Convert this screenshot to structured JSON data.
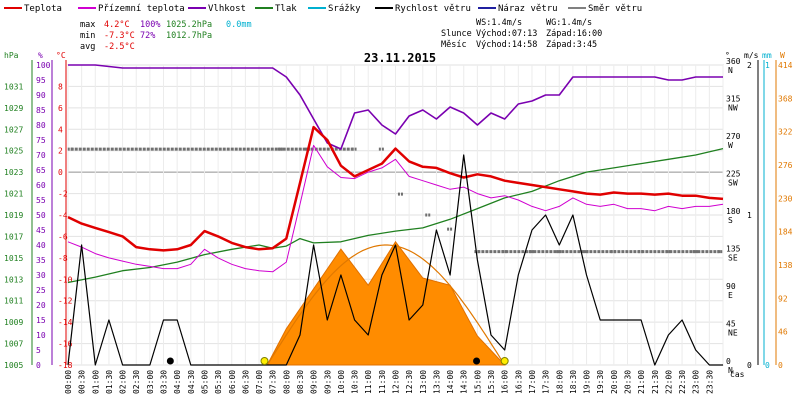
{
  "chart_data": {
    "type": "line",
    "title": "23.11.2015",
    "legend": [
      {
        "name": "Teplota",
        "color": "#e00000"
      },
      {
        "name": "Přízemní teplota",
        "color": "#d000d0"
      },
      {
        "name": "Vlhkost",
        "color": "#7a00b0"
      },
      {
        "name": "Tlak",
        "color": "#208020"
      },
      {
        "name": "Srážky",
        "color": "#00b0d0"
      },
      {
        "name": "Rychlost větru",
        "color": "#000000"
      },
      {
        "name": "Náraz větru",
        "color": "#2020a0"
      },
      {
        "name": "Směr větru",
        "color": "#808080"
      }
    ],
    "stats": {
      "max_label": "max",
      "max_temp": "4.2°C",
      "max_hum": "100%",
      "max_press": "1025.2hPa",
      "max_rain": "0.0mm",
      "min_label": "min",
      "min_temp": "-7.3°C",
      "min_hum": "72%",
      "min_press": "1012.7hPa",
      "avg_label": "avg",
      "avg_temp": "-2.5°C",
      "ws": "WS:1.4m/s",
      "wg": "WG:1.4m/s",
      "sun_label": "Slunce",
      "sunrise": "Východ:07:13",
      "sunset": "Západ:16:00",
      "moon_label": "Měsíc",
      "moonrise": "Východ:14:58",
      "moonset": "Západ:3:45"
    },
    "axes": {
      "hpa_title": "hPa",
      "pct_title": "%",
      "c_title": "°C",
      "hpa_ticks": [
        "1005",
        "1007",
        "1009",
        "1011",
        "1013",
        "1015",
        "1017",
        "1019",
        "1021",
        "1023",
        "1025",
        "1027",
        "1029",
        "1031"
      ],
      "pct_ticks": [
        "0",
        "5",
        "10",
        "15",
        "20",
        "25",
        "30",
        "35",
        "40",
        "45",
        "50",
        "55",
        "60",
        "65",
        "70",
        "75",
        "80",
        "85",
        "90",
        "95",
        "100"
      ],
      "c_ticks": [
        "-18",
        "-16",
        "-14",
        "-12",
        "-10",
        "-8",
        "-6",
        "-4",
        "-2",
        "0",
        "2",
        "4",
        "6",
        "8"
      ],
      "deg_title": "°",
      "dir_ticks": [
        "0",
        "45",
        "90",
        "135",
        "180",
        "225",
        "270",
        "315",
        "360"
      ],
      "dir_labels": [
        "N",
        "NE",
        "E",
        "SE",
        "S",
        "SW",
        "W",
        "NW",
        "N"
      ],
      "ms_title": "m/s",
      "ms_ticks": [
        "0",
        "1",
        "2"
      ],
      "mm_title": "mm",
      "mm_ticks": [
        "0",
        "1"
      ],
      "wm2_title": "W",
      "sol_ticks": [
        "0",
        "46",
        "92",
        "138",
        "184",
        "230",
        "276",
        "322",
        "368",
        "414"
      ],
      "x_title": "čas",
      "x_ticks": [
        "00:00",
        "00:30",
        "01:00",
        "01:30",
        "02:00",
        "02:30",
        "03:00",
        "03:30",
        "04:00",
        "04:30",
        "05:00",
        "05:30",
        "06:00",
        "06:30",
        "07:00",
        "07:30",
        "08:00",
        "08:30",
        "09:00",
        "09:30",
        "10:00",
        "10:30",
        "11:00",
        "11:30",
        "12:00",
        "12:30",
        "13:00",
        "13:30",
        "14:00",
        "14:30",
        "15:00",
        "15:30",
        "16:00",
        "16:30",
        "17:00",
        "17:30",
        "18:00",
        "18:30",
        "19:00",
        "19:30",
        "20:00",
        "20:30",
        "21:00",
        "21:30",
        "22:00",
        "22:30",
        "23:00",
        "23:30"
      ],
      "x_range_h": [
        0,
        24
      ],
      "temp_range": [
        -18,
        10
      ],
      "hum_range": [
        0,
        100
      ]
    },
    "series": [
      {
        "name": "Teplota",
        "unit": "°C",
        "x_h": [
          0,
          0.5,
          1,
          1.5,
          2,
          2.5,
          3,
          3.5,
          4,
          4.5,
          5,
          5.5,
          6,
          6.5,
          7,
          7.5,
          8,
          8.5,
          9,
          9.5,
          10,
          10.5,
          11,
          11.5,
          12,
          12.5,
          13,
          13.5,
          14,
          14.5,
          15,
          15.5,
          16,
          16.5,
          17,
          17.5,
          18,
          18.5,
          19,
          19.5,
          20,
          20.5,
          21,
          21.5,
          22,
          22.5,
          23,
          23.5,
          24
        ],
        "values": [
          -4.2,
          -4.8,
          -5.2,
          -5.6,
          -6.0,
          -7.0,
          -7.2,
          -7.3,
          -7.2,
          -6.8,
          -5.5,
          -6.0,
          -6.6,
          -7.0,
          -7.2,
          -7.1,
          -6.2,
          -1.0,
          4.2,
          3.0,
          0.6,
          -0.4,
          0.2,
          0.8,
          2.2,
          1.0,
          0.5,
          0.4,
          -0.1,
          -0.5,
          -0.2,
          -0.4,
          -0.8,
          -1.0,
          -1.2,
          -1.4,
          -1.6,
          -1.8,
          -2.0,
          -2.1,
          -1.9,
          -2.0,
          -2.0,
          -2.1,
          -2.0,
          -2.2,
          -2.2,
          -2.4,
          -2.5
        ]
      },
      {
        "name": "Přízemní teplota",
        "unit": "°C",
        "x_h": [
          0,
          0.5,
          1,
          1.5,
          2,
          2.5,
          3,
          3.5,
          4,
          4.5,
          5,
          5.5,
          6,
          6.5,
          7,
          7.5,
          8,
          8.5,
          9,
          9.5,
          10,
          10.5,
          11,
          11.5,
          12,
          12.5,
          13,
          13.5,
          14,
          14.5,
          15,
          15.5,
          16,
          16.5,
          17,
          17.5,
          18,
          18.5,
          19,
          19.5,
          20,
          20.5,
          21,
          21.5,
          22,
          22.5,
          23,
          23.5,
          24
        ],
        "values": [
          -6.5,
          -7.0,
          -7.6,
          -8.0,
          -8.3,
          -8.6,
          -8.8,
          -9.0,
          -9.0,
          -8.6,
          -7.2,
          -8.0,
          -8.6,
          -9.0,
          -9.2,
          -9.3,
          -8.4,
          -3.0,
          2.5,
          0.5,
          -0.5,
          -0.6,
          0.0,
          0.4,
          1.2,
          -0.4,
          -0.8,
          -1.2,
          -1.6,
          -1.4,
          -2.0,
          -2.4,
          -2.2,
          -2.6,
          -3.2,
          -3.6,
          -3.2,
          -2.4,
          -3.0,
          -3.2,
          -3.0,
          -3.4,
          -3.4,
          -3.6,
          -3.2,
          -3.4,
          -3.2,
          -3.2,
          -3.0
        ]
      },
      {
        "name": "Vlhkost",
        "unit": "%",
        "x_h": [
          0,
          1,
          2,
          3,
          4,
          5,
          6,
          7,
          7.5,
          8,
          8.5,
          9,
          9.5,
          10,
          10.5,
          11,
          11.5,
          12,
          12.5,
          13,
          13.5,
          14,
          14.5,
          15,
          15.5,
          16,
          16.5,
          17,
          17.5,
          18,
          18.5,
          19,
          19.5,
          20,
          20.5,
          21,
          21.5,
          22,
          22.5,
          23,
          23.5,
          24
        ],
        "values": [
          100,
          100,
          99,
          99,
          99,
          99,
          99,
          99,
          99,
          96,
          90,
          82,
          74,
          72,
          84,
          85,
          80,
          77,
          83,
          85,
          82,
          86,
          84,
          80,
          84,
          82,
          87,
          88,
          90,
          90,
          96,
          96,
          96,
          96,
          96,
          96,
          96,
          95,
          95,
          96,
          96,
          96
        ]
      },
      {
        "name": "Tlak",
        "unit": "hPa",
        "x_h": [
          0,
          1,
          2,
          3,
          4,
          5,
          6,
          7,
          7.5,
          8,
          8.5,
          9,
          10,
          11,
          12,
          13,
          14,
          15,
          16,
          17,
          18,
          19,
          20,
          21,
          22,
          23,
          24
        ],
        "values": [
          1012.7,
          1013.2,
          1013.8,
          1014.1,
          1014.6,
          1015.3,
          1015.8,
          1016.2,
          1015.9,
          1016.1,
          1016.8,
          1016.4,
          1016.5,
          1017.1,
          1017.5,
          1017.8,
          1018.6,
          1019.6,
          1020.6,
          1021.2,
          1022.2,
          1023.0,
          1023.4,
          1023.8,
          1024.2,
          1024.6,
          1025.2
        ]
      },
      {
        "name": "Srážky",
        "unit": "mm",
        "x_h": [
          0,
          24
        ],
        "values": [
          0.0,
          0.0
        ]
      },
      {
        "name": "Rychlost větru",
        "unit": "m/s",
        "x_h": [
          0,
          0.5,
          1,
          1.5,
          2,
          2.5,
          3,
          3.5,
          4,
          4.5,
          5,
          5.5,
          6,
          6.5,
          7,
          7.5,
          8,
          8.5,
          9,
          9.5,
          10,
          10.5,
          11,
          11.5,
          12,
          12.5,
          13,
          13.5,
          14,
          14.5,
          15,
          15.5,
          16,
          16.5,
          17,
          17.5,
          18,
          18.5,
          19,
          19.5,
          20,
          20.5,
          21,
          21.5,
          22,
          22.5,
          23,
          23.5,
          24
        ],
        "values": [
          0.0,
          0.8,
          0.0,
          0.3,
          0.0,
          0.0,
          0.0,
          0.3,
          0.3,
          0.0,
          0.0,
          0.0,
          0.0,
          0.0,
          0.0,
          0.0,
          0.0,
          0.2,
          0.8,
          0.3,
          0.6,
          0.3,
          0.2,
          0.6,
          0.8,
          0.3,
          0.4,
          0.9,
          0.6,
          1.4,
          0.7,
          0.2,
          0.1,
          0.6,
          0.9,
          1.0,
          0.8,
          1.0,
          0.6,
          0.3,
          0.3,
          0.3,
          0.3,
          0.0,
          0.2,
          0.3,
          0.1,
          0.0,
          0.0
        ]
      },
      {
        "name": "Náraz větru",
        "unit": "m/s",
        "x_h": [
          0,
          24
        ],
        "values": [
          0.0,
          0.0
        ]
      },
      {
        "name": "Směr větru",
        "unit": "°",
        "x_h": [
          0.1,
          7.8,
          8.8,
          10.5,
          11.5,
          12.2,
          13.2,
          14.0,
          15.0,
          16.0,
          17.0,
          18.0,
          19.0,
          20.0,
          21.0,
          22.0,
          23.0,
          23.9
        ],
        "values": [
          259,
          259,
          259,
          259,
          259,
          205,
          180,
          163,
          136,
          136,
          136,
          136,
          136,
          136,
          136,
          136,
          136,
          136
        ]
      },
      {
        "name": "Sluneční záření",
        "unit": "W/m²",
        "x_h": [
          7.3,
          8,
          9,
          10,
          11,
          12,
          13,
          14,
          15,
          16
        ],
        "values": [
          0,
          50,
          105,
          160,
          110,
          170,
          120,
          110,
          40,
          0
        ]
      }
    ]
  }
}
